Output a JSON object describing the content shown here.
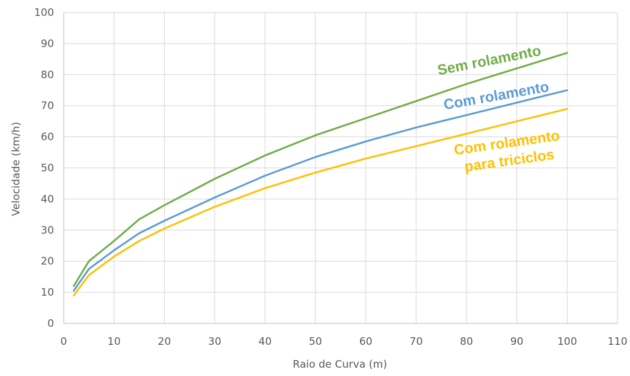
{
  "chart_data": {
    "type": "line",
    "title": "",
    "xlabel": "Raio de Curva (m)",
    "ylabel": "Velocidade (km/h)",
    "xlim": [
      0,
      110
    ],
    "ylim": [
      0,
      100
    ],
    "x_ticks": [
      0,
      10,
      20,
      30,
      40,
      50,
      60,
      70,
      80,
      90,
      100,
      110
    ],
    "y_ticks": [
      0,
      10,
      20,
      30,
      40,
      50,
      60,
      70,
      80,
      90,
      100
    ],
    "grid": true,
    "legend": "none",
    "series": [
      {
        "name": "Sem rolamento",
        "label_lines": [
          "Sem rolamento"
        ],
        "color": "#70AD47",
        "points": [
          [
            2,
            12
          ],
          [
            5,
            20
          ],
          [
            10,
            26.5
          ],
          [
            15,
            33.5
          ],
          [
            20,
            38
          ],
          [
            30,
            46.5
          ],
          [
            40,
            54
          ],
          [
            50,
            60.5
          ],
          [
            60,
            66
          ],
          [
            70,
            71.5
          ],
          [
            80,
            77
          ],
          [
            90,
            82
          ],
          [
            100,
            87
          ]
        ]
      },
      {
        "name": "Com rolamento",
        "label_lines": [
          "Com rolamento"
        ],
        "color": "#5B9BD5",
        "points": [
          [
            2,
            10.5
          ],
          [
            5,
            17.5
          ],
          [
            10,
            23.5
          ],
          [
            15,
            29
          ],
          [
            20,
            33
          ],
          [
            30,
            40.5
          ],
          [
            40,
            47.5
          ],
          [
            50,
            53.5
          ],
          [
            60,
            58.5
          ],
          [
            70,
            63
          ],
          [
            80,
            67
          ],
          [
            90,
            71
          ],
          [
            100,
            75
          ]
        ]
      },
      {
        "name": "Com rolamento para triciclos",
        "label_lines": [
          "Com rolamento",
          "para triciclos"
        ],
        "color": "#FFC000",
        "points": [
          [
            2,
            9
          ],
          [
            5,
            15.5
          ],
          [
            10,
            21.5
          ],
          [
            15,
            26.5
          ],
          [
            20,
            30.5
          ],
          [
            30,
            37.5
          ],
          [
            40,
            43.5
          ],
          [
            50,
            48.5
          ],
          [
            60,
            53
          ],
          [
            70,
            57
          ],
          [
            80,
            61
          ],
          [
            90,
            65
          ],
          [
            100,
            69
          ]
        ]
      }
    ]
  }
}
